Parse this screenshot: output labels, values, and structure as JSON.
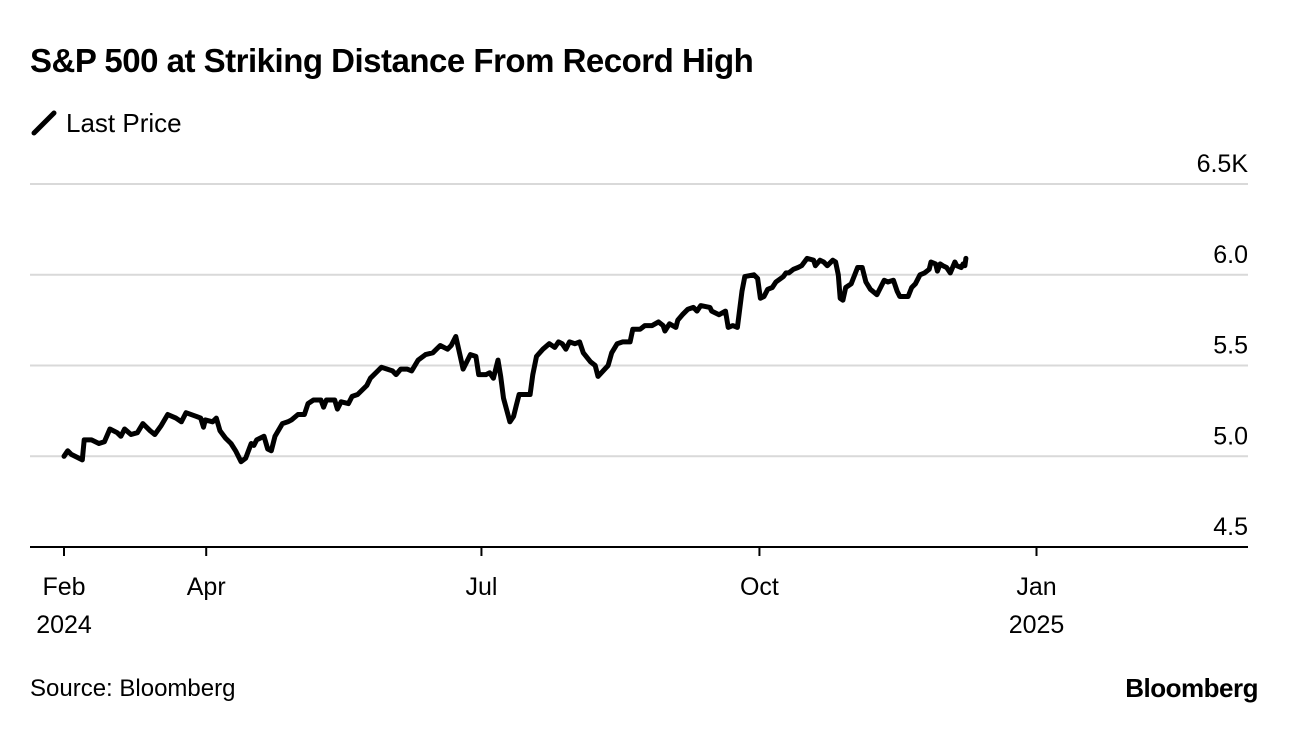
{
  "title": "S&P 500 at Striking Distance From Record High",
  "legend": {
    "label": "Last Price",
    "icon": "line-swatch-icon",
    "color": "#000000"
  },
  "source": "Source: Bloomberg",
  "brand": "Bloomberg",
  "chart_data": {
    "type": "line",
    "title": "S&P 500 at Striking Distance From Record High",
    "xlabel": "",
    "ylabel": "",
    "ylim": [
      4.5,
      6.5
    ],
    "xlim": [
      -0.1,
      12.6
    ],
    "y_unit": "K",
    "y_ticks": [
      {
        "value": 6.5,
        "label": "6.5K"
      },
      {
        "value": 6.0,
        "label": "6.0"
      },
      {
        "value": 5.5,
        "label": "5.5"
      },
      {
        "value": 5.0,
        "label": "5.0"
      },
      {
        "value": 4.5,
        "label": "4.5"
      }
    ],
    "x_ticks": [
      {
        "value": 0.0,
        "label": "Feb",
        "sublabel": "2024"
      },
      {
        "value": 1.55,
        "label": "Apr",
        "sublabel": ""
      },
      {
        "value": 4.55,
        "label": "Jul",
        "sublabel": ""
      },
      {
        "value": 7.58,
        "label": "Oct",
        "sublabel": ""
      },
      {
        "value": 10.6,
        "label": "Jan",
        "sublabel": "2025"
      }
    ],
    "grid": true,
    "series": [
      {
        "name": "Last Price",
        "color": "#000000",
        "points": [
          [
            0.0,
            5.0
          ],
          [
            0.04,
            5.03
          ],
          [
            0.08,
            5.01
          ],
          [
            0.2,
            4.98
          ],
          [
            0.22,
            5.09
          ],
          [
            0.3,
            5.09
          ],
          [
            0.38,
            5.07
          ],
          [
            0.44,
            5.08
          ],
          [
            0.5,
            5.15
          ],
          [
            0.58,
            5.13
          ],
          [
            0.62,
            5.11
          ],
          [
            0.66,
            5.15
          ],
          [
            0.73,
            5.12
          ],
          [
            0.8,
            5.13
          ],
          [
            0.86,
            5.18
          ],
          [
            0.94,
            5.14
          ],
          [
            0.99,
            5.12
          ],
          [
            1.06,
            5.17
          ],
          [
            1.13,
            5.23
          ],
          [
            1.22,
            5.21
          ],
          [
            1.28,
            5.19
          ],
          [
            1.33,
            5.24
          ],
          [
            1.44,
            5.22
          ],
          [
            1.49,
            5.21
          ],
          [
            1.52,
            5.16
          ],
          [
            1.54,
            5.2
          ],
          [
            1.62,
            5.19
          ],
          [
            1.66,
            5.21
          ],
          [
            1.7,
            5.14
          ],
          [
            1.76,
            5.1
          ],
          [
            1.82,
            5.07
          ],
          [
            1.87,
            5.03
          ],
          [
            1.93,
            4.97
          ],
          [
            1.98,
            4.99
          ],
          [
            2.04,
            5.07
          ],
          [
            2.07,
            5.06
          ],
          [
            2.1,
            5.09
          ],
          [
            2.18,
            5.11
          ],
          [
            2.22,
            5.04
          ],
          [
            2.26,
            5.03
          ],
          [
            2.3,
            5.11
          ],
          [
            2.38,
            5.18
          ],
          [
            2.44,
            5.19
          ],
          [
            2.48,
            5.2
          ],
          [
            2.55,
            5.23
          ],
          [
            2.62,
            5.23
          ],
          [
            2.66,
            5.29
          ],
          [
            2.72,
            5.31
          ],
          [
            2.8,
            5.31
          ],
          [
            2.83,
            5.27
          ],
          [
            2.86,
            5.31
          ],
          [
            2.95,
            5.31
          ],
          [
            2.98,
            5.26
          ],
          [
            3.02,
            5.3
          ],
          [
            3.1,
            5.29
          ],
          [
            3.14,
            5.33
          ],
          [
            3.2,
            5.34
          ],
          [
            3.3,
            5.39
          ],
          [
            3.34,
            5.43
          ],
          [
            3.42,
            5.47
          ],
          [
            3.46,
            5.49
          ],
          [
            3.58,
            5.47
          ],
          [
            3.62,
            5.45
          ],
          [
            3.67,
            5.48
          ],
          [
            3.74,
            5.48
          ],
          [
            3.79,
            5.47
          ],
          [
            3.86,
            5.53
          ],
          [
            3.94,
            5.56
          ],
          [
            4.02,
            5.57
          ],
          [
            4.1,
            5.61
          ],
          [
            4.18,
            5.59
          ],
          [
            4.22,
            5.61
          ],
          [
            4.27,
            5.66
          ],
          [
            4.32,
            5.55
          ],
          [
            4.35,
            5.48
          ],
          [
            4.43,
            5.56
          ],
          [
            4.49,
            5.55
          ],
          [
            4.52,
            5.45
          ],
          [
            4.6,
            5.45
          ],
          [
            4.64,
            5.46
          ],
          [
            4.68,
            5.43
          ],
          [
            4.73,
            5.53
          ],
          [
            4.76,
            5.44
          ],
          [
            4.79,
            5.32
          ],
          [
            4.86,
            5.19
          ],
          [
            4.9,
            5.22
          ],
          [
            4.93,
            5.28
          ],
          [
            4.96,
            5.34
          ],
          [
            5.08,
            5.34
          ],
          [
            5.11,
            5.45
          ],
          [
            5.15,
            5.55
          ],
          [
            5.22,
            5.59
          ],
          [
            5.29,
            5.62
          ],
          [
            5.35,
            5.6
          ],
          [
            5.39,
            5.63
          ],
          [
            5.43,
            5.62
          ],
          [
            5.47,
            5.59
          ],
          [
            5.51,
            5.63
          ],
          [
            5.57,
            5.62
          ],
          [
            5.62,
            5.63
          ],
          [
            5.66,
            5.57
          ],
          [
            5.74,
            5.52
          ],
          [
            5.79,
            5.5
          ],
          [
            5.82,
            5.44
          ],
          [
            5.93,
            5.5
          ],
          [
            5.97,
            5.57
          ],
          [
            6.03,
            5.62
          ],
          [
            6.09,
            5.63
          ],
          [
            6.17,
            5.63
          ],
          [
            6.2,
            5.7
          ],
          [
            6.28,
            5.7
          ],
          [
            6.33,
            5.72
          ],
          [
            6.41,
            5.72
          ],
          [
            6.48,
            5.74
          ],
          [
            6.53,
            5.72
          ],
          [
            6.55,
            5.69
          ],
          [
            6.6,
            5.73
          ],
          [
            6.67,
            5.71
          ],
          [
            6.69,
            5.75
          ],
          [
            6.74,
            5.78
          ],
          [
            6.8,
            5.81
          ],
          [
            6.86,
            5.82
          ],
          [
            6.9,
            5.8
          ],
          [
            6.94,
            5.83
          ],
          [
            7.04,
            5.82
          ],
          [
            7.06,
            5.8
          ],
          [
            7.14,
            5.78
          ],
          [
            7.21,
            5.8
          ],
          [
            7.24,
            5.71
          ],
          [
            7.29,
            5.72
          ],
          [
            7.34,
            5.71
          ],
          [
            7.39,
            5.91
          ],
          [
            7.42,
            5.99
          ],
          [
            7.52,
            6.0
          ],
          [
            7.56,
            5.98
          ],
          [
            7.59,
            5.87
          ],
          [
            7.63,
            5.88
          ],
          [
            7.67,
            5.92
          ],
          [
            7.72,
            5.93
          ],
          [
            7.76,
            5.96
          ],
          [
            7.84,
            5.99
          ],
          [
            7.87,
            6.01
          ],
          [
            7.9,
            6.01
          ],
          [
            7.95,
            6.03
          ],
          [
            8.0,
            6.04
          ],
          [
            8.04,
            6.05
          ],
          [
            8.1,
            6.09
          ],
          [
            8.17,
            6.08
          ],
          [
            8.19,
            6.05
          ],
          [
            8.24,
            6.08
          ],
          [
            8.28,
            6.07
          ],
          [
            8.32,
            6.05
          ],
          [
            8.38,
            6.08
          ],
          [
            8.41,
            6.07
          ],
          [
            8.44,
            6.0
          ],
          [
            8.46,
            5.87
          ],
          [
            8.49,
            5.86
          ],
          [
            8.52,
            5.93
          ],
          [
            8.58,
            5.95
          ],
          [
            8.65,
            6.04
          ],
          [
            8.7,
            6.04
          ],
          [
            8.74,
            5.96
          ],
          [
            8.79,
            5.92
          ],
          [
            8.86,
            5.89
          ],
          [
            8.94,
            5.97
          ],
          [
            8.98,
            5.96
          ],
          [
            9.04,
            5.97
          ],
          [
            9.08,
            5.91
          ],
          [
            9.11,
            5.88
          ],
          [
            9.2,
            5.88
          ],
          [
            9.24,
            5.93
          ],
          [
            9.28,
            5.95
          ],
          [
            9.33,
            6.0
          ],
          [
            9.38,
            6.01
          ],
          [
            9.43,
            6.03
          ],
          [
            9.45,
            6.07
          ],
          [
            9.5,
            6.06
          ],
          [
            9.52,
            6.02
          ],
          [
            9.55,
            6.06
          ],
          [
            9.58,
            6.05
          ],
          [
            9.62,
            6.04
          ],
          [
            9.66,
            6.01
          ],
          [
            9.71,
            6.07
          ],
          [
            9.73,
            6.05
          ],
          [
            9.78,
            6.04
          ],
          [
            9.8,
            6.06
          ],
          [
            9.82,
            6.05
          ],
          [
            9.83,
            6.09
          ]
        ]
      }
    ]
  }
}
